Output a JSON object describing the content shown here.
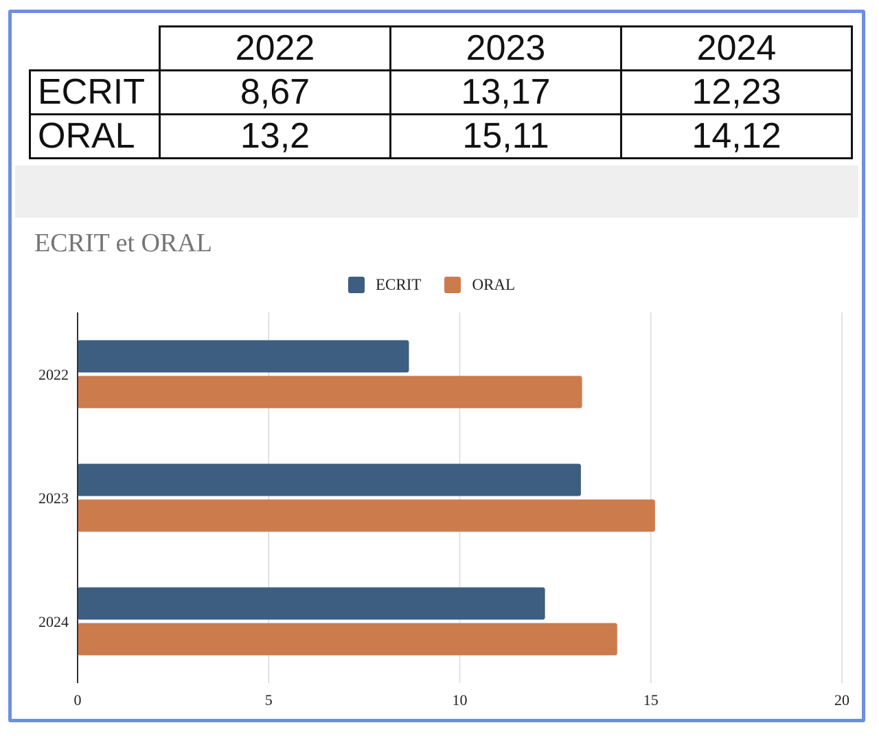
{
  "table": {
    "columns": [
      "2022",
      "2023",
      "2024"
    ],
    "rows": [
      {
        "label": "ECRIT",
        "values": [
          "8,67",
          "13,17",
          "12,23"
        ]
      },
      {
        "label": "ORAL",
        "values": [
          "13,2",
          "15,11",
          "14,12"
        ]
      }
    ]
  },
  "chart_data": {
    "type": "bar",
    "orientation": "horizontal",
    "title": "ECRIT et ORAL",
    "categories": [
      "2022",
      "2023",
      "2024"
    ],
    "series": [
      {
        "name": "ECRIT",
        "values": [
          8.67,
          13.17,
          12.23
        ],
        "color": "#3d5e80"
      },
      {
        "name": "ORAL",
        "values": [
          13.2,
          15.11,
          14.12
        ],
        "color": "#cc7b4d"
      }
    ],
    "xlim": [
      0,
      20
    ],
    "xticks": [
      "0",
      "5",
      "10",
      "15",
      "20"
    ],
    "grid": true,
    "legend": "top-center"
  }
}
